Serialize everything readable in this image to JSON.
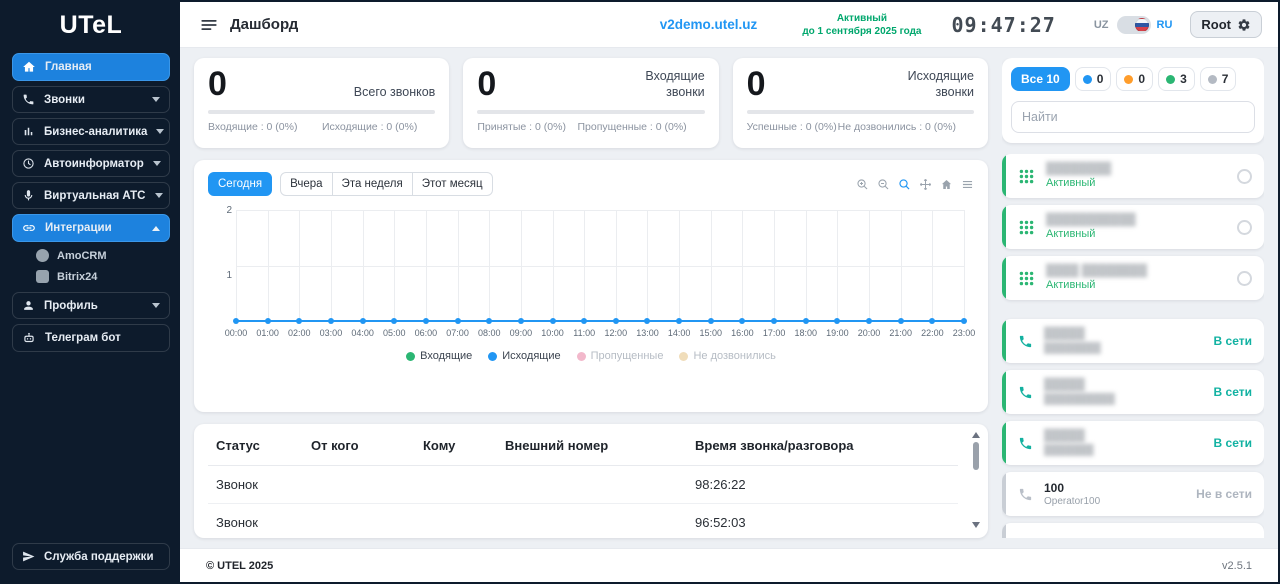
{
  "app": {
    "logo": "UTeL",
    "copyright": "© UTEL 2025",
    "version": "v2.5.1"
  },
  "header": {
    "title": "Дашборд",
    "domain": "v2demo.utel.uz",
    "license_status": "Активный",
    "license_until": "до 1 сентября 2025 года",
    "clock": "09:47:27",
    "lang_uz": "UZ",
    "lang_ru": "RU",
    "user": "Root"
  },
  "sidebar": {
    "items": [
      {
        "label": "Главная"
      },
      {
        "label": "Звонки"
      },
      {
        "label": "Бизнес-аналитика"
      },
      {
        "label": "Автоинформатор"
      },
      {
        "label": "Виртуальная АТС"
      },
      {
        "label": "Интеграции"
      },
      {
        "label": "Профиль"
      },
      {
        "label": "Телеграм бот"
      }
    ],
    "integrations_children": [
      {
        "label": "AmoCRM"
      },
      {
        "label": "Bitrix24"
      }
    ],
    "support": "Служба поддержки"
  },
  "stats": [
    {
      "value": "0",
      "label": "Всего звонков",
      "left": "Входящие : 0 (0%)",
      "right": "Исходящие : 0 (0%)"
    },
    {
      "value": "0",
      "label": "Входящие звонки",
      "left": "Принятые : 0 (0%)",
      "right": "Пропущенные : 0 (0%)"
    },
    {
      "value": "0",
      "label": "Исходящие звонки",
      "left": "Успешные : 0 (0%)",
      "right": "Не дозвонились : 0 (0%)"
    }
  ],
  "chart": {
    "tabs": [
      {
        "label": "Сегодня",
        "active": true
      },
      {
        "label": "Вчера"
      },
      {
        "label": "Эта неделя"
      },
      {
        "label": "Этот месяц"
      }
    ],
    "chart_data": {
      "type": "line",
      "x": [
        "00:00",
        "01:00",
        "02:00",
        "03:00",
        "04:00",
        "05:00",
        "06:00",
        "07:00",
        "08:00",
        "09:00",
        "10:00",
        "11:00",
        "12:00",
        "13:00",
        "14:00",
        "15:00",
        "16:00",
        "17:00",
        "18:00",
        "19:00",
        "20:00",
        "21:00",
        "22:00",
        "23:00"
      ],
      "series": [
        {
          "name": "Входящие",
          "color": "#2bb673",
          "values": [
            0,
            0,
            0,
            0,
            0,
            0,
            0,
            0,
            0,
            0,
            0,
            0,
            0,
            0,
            0,
            0,
            0,
            0,
            0,
            0,
            0,
            0,
            0,
            0
          ]
        },
        {
          "name": "Исходящие",
          "color": "#2196f3",
          "values": [
            0,
            0,
            0,
            0,
            0,
            0,
            0,
            0,
            0,
            0,
            0,
            0,
            0,
            0,
            0,
            0,
            0,
            0,
            0,
            0,
            0,
            0,
            0,
            0
          ]
        },
        {
          "name": "Пропущенные",
          "color": "#f2b8cb",
          "dimmed": true
        },
        {
          "name": "Не дозвонились",
          "color": "#f0ddba",
          "dimmed": true
        }
      ],
      "ylim": [
        0,
        2
      ],
      "yticks": [
        "1",
        "2"
      ],
      "grid": true,
      "legend_position": "bottom"
    }
  },
  "calls_table": {
    "headers": [
      "Статус",
      "От кого",
      "Кому",
      "Внешний номер",
      "Время звонка/разговора"
    ],
    "rows": [
      {
        "status": "Звонок",
        "from": "",
        "to": "",
        "external": "",
        "time": "98:26:22"
      },
      {
        "status": "Звонок",
        "from": "",
        "to": "",
        "external": "",
        "time": "96:52:03"
      }
    ]
  },
  "panel": {
    "filter_all": "Все 10",
    "chips": [
      {
        "count": "0",
        "color": "#2196f3"
      },
      {
        "count": "0",
        "color": "#ff9d2b"
      },
      {
        "count": "3",
        "color": "#2bb673"
      },
      {
        "count": "7",
        "color": "#b4bac3"
      }
    ],
    "search_placeholder": "Найти",
    "extensions": [
      {
        "type": "trunk",
        "name": "████████",
        "masked": true,
        "status": "Активный"
      },
      {
        "type": "trunk",
        "name": "███████████",
        "masked": true,
        "status": "Активный"
      },
      {
        "type": "trunk",
        "name": "████ ████████",
        "masked": true,
        "status": "Активный"
      },
      {
        "type": "operator",
        "name": "█████",
        "subtitle": "████████",
        "masked": true,
        "status": "В сети"
      },
      {
        "type": "operator",
        "name": "█████",
        "subtitle": "██████████",
        "masked": true,
        "status": "В сети"
      },
      {
        "type": "operator",
        "name": "█████",
        "subtitle": "███████",
        "masked": true,
        "status": "В сети"
      },
      {
        "type": "operator",
        "name": "100",
        "subtitle": "Operator100",
        "status": "Не в сети",
        "offline": true
      }
    ]
  },
  "icons": {
    "menu": "hamburger",
    "home": "house",
    "calls": "phone-handset",
    "analytics": "bar-chart",
    "autoinformer": "clock",
    "pbx": "microphone",
    "integrations": "link",
    "profile": "person",
    "telegram_bot": "robot",
    "support": "paper-plane",
    "settings": "gear",
    "dialpad": "keypad-grid",
    "zoom_in": "magnifier-plus",
    "zoom_out": "magnifier-minus",
    "zoom": "magnifier",
    "pan": "arrows-move",
    "reset": "house",
    "modebar_menu": "hamburger",
    "flag": "russia-flag"
  }
}
